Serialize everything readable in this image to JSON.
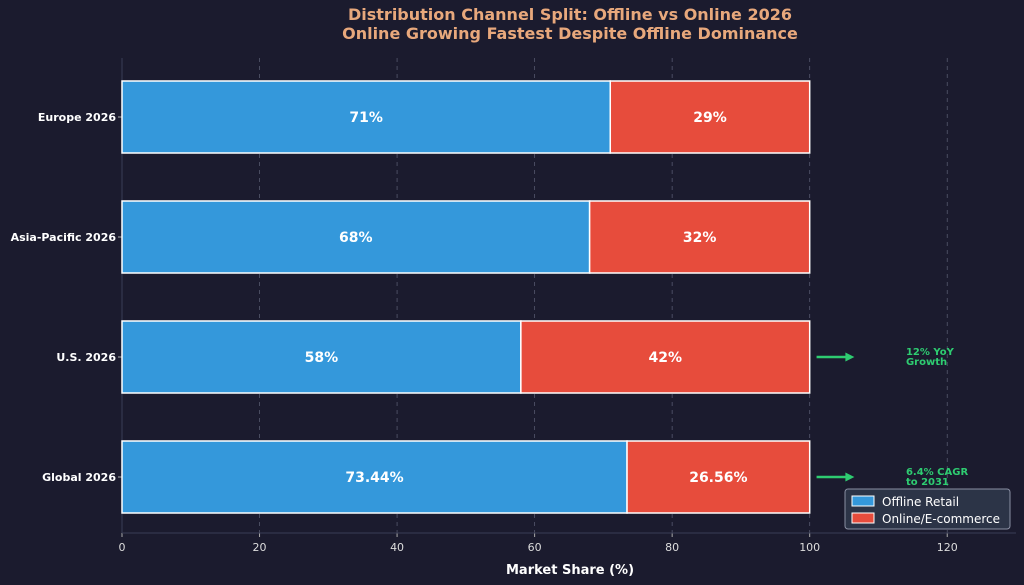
{
  "chart_data": {
    "type": "bar",
    "orientation": "horizontal",
    "stacked": true,
    "title": "Distribution Channel Split: Offline vs Online 2026",
    "subtitle": "Online Growing Fastest Despite Offline Dominance",
    "xlabel": "Market Share (%)",
    "ylabel": "",
    "xlim": [
      0,
      130
    ],
    "xticks": [
      "0",
      "20",
      "40",
      "60",
      "80",
      "100",
      "120"
    ],
    "grid": "x-dashed",
    "legend_position": "bottom-right",
    "categories": [
      "Europe 2026",
      "Asia-Pacific 2026",
      "U.S. 2026",
      "Global 2026"
    ],
    "series": [
      {
        "name": "Offline Retail",
        "color": "#3498db",
        "values": [
          71,
          68,
          58,
          73.44
        ],
        "labels": [
          "71%",
          "68%",
          "58%",
          "73.44%"
        ]
      },
      {
        "name": "Online/E-commerce",
        "color": "#e74c3c",
        "values": [
          29,
          32,
          42,
          26.56
        ],
        "labels": [
          "29%",
          "32%",
          "42%",
          "26.56%"
        ]
      }
    ],
    "annotations": [
      {
        "category": "U.S. 2026",
        "lines": [
          "12% YoY",
          "Growth"
        ],
        "color": "#2ecc71"
      },
      {
        "category": "Global 2026",
        "lines": [
          "6.4% CAGR",
          "to 2031"
        ],
        "color": "#2ecc71"
      }
    ]
  }
}
